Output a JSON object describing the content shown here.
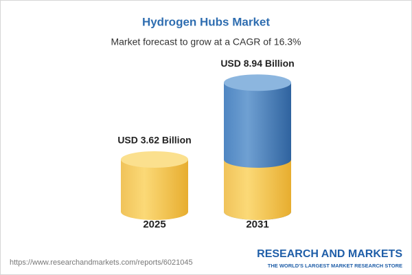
{
  "chart_data": {
    "type": "bar",
    "title": "Hydrogen Hubs Market",
    "subtitle": "Market forecast to grow at a CAGR of 16.3%",
    "categories": [
      "2025",
      "2031"
    ],
    "values": [
      3.62,
      8.94
    ],
    "value_labels": [
      "USD 3.62 Billion",
      "USD 8.94 Billion"
    ]
  },
  "footer": {
    "url": "https://www.researchandmarkets.com/reports/6021045",
    "logo": "RESEARCH AND MARKETS",
    "tagline": "THE WORLD'S LARGEST MARKET RESEARCH STORE"
  }
}
